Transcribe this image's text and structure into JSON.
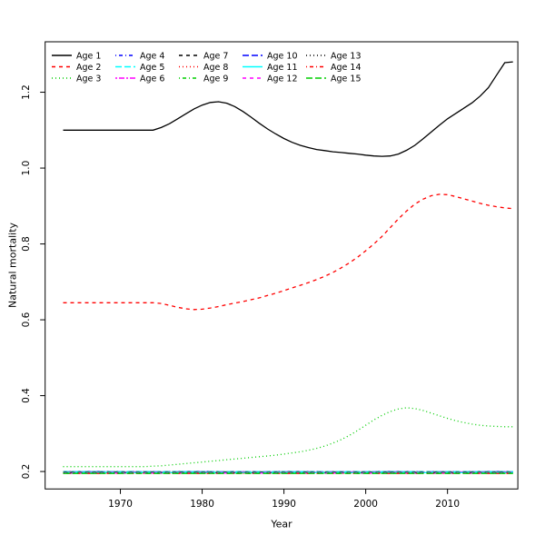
{
  "figure": {
    "background": "#ffffff"
  },
  "chart_data": {
    "type": "line",
    "title": "",
    "xlabel": "Year",
    "ylabel": "Natural mortality",
    "x_ticks": [
      1970,
      1980,
      1990,
      2000,
      2010
    ],
    "y_ticks": [
      0.2,
      0.4,
      0.6,
      0.8,
      1.0,
      1.2
    ],
    "xlim": [
      1960.8,
      2018.6
    ],
    "ylim": [
      0.154,
      1.333
    ],
    "grid": false,
    "legend_position": "top-horizontal",
    "legend_columns": 5,
    "legend_rows": 3,
    "x": [
      1963,
      1964,
      1965,
      1966,
      1967,
      1968,
      1969,
      1970,
      1971,
      1972,
      1973,
      1974,
      1975,
      1976,
      1977,
      1978,
      1979,
      1980,
      1981,
      1982,
      1983,
      1984,
      1985,
      1986,
      1987,
      1988,
      1989,
      1990,
      1991,
      1992,
      1993,
      1994,
      1995,
      1996,
      1997,
      1998,
      1999,
      2000,
      2001,
      2002,
      2003,
      2004,
      2005,
      2006,
      2007,
      2008,
      2009,
      2010,
      2011,
      2012,
      2013,
      2014,
      2015,
      2016,
      2017,
      2018
    ],
    "series": [
      {
        "name": "Age 1",
        "color": "#000000",
        "dash": "solid",
        "values": [
          1.1,
          1.1,
          1.1,
          1.1,
          1.1,
          1.1,
          1.1,
          1.1,
          1.1,
          1.1,
          1.1,
          1.1,
          1.107,
          1.117,
          1.13,
          1.143,
          1.156,
          1.166,
          1.173,
          1.175,
          1.171,
          1.162,
          1.149,
          1.134,
          1.118,
          1.103,
          1.09,
          1.078,
          1.068,
          1.06,
          1.054,
          1.049,
          1.046,
          1.043,
          1.041,
          1.039,
          1.037,
          1.034,
          1.032,
          1.031,
          1.032,
          1.037,
          1.047,
          1.06,
          1.077,
          1.095,
          1.113,
          1.13,
          1.144,
          1.158,
          1.172,
          1.19,
          1.212,
          1.245,
          1.278,
          1.28
        ]
      },
      {
        "name": "Age 2",
        "color": "#FF0000",
        "dash": "dashed",
        "values": [
          0.645,
          0.645,
          0.645,
          0.645,
          0.645,
          0.645,
          0.645,
          0.645,
          0.645,
          0.645,
          0.645,
          0.645,
          0.643,
          0.638,
          0.633,
          0.629,
          0.627,
          0.628,
          0.631,
          0.635,
          0.64,
          0.644,
          0.648,
          0.653,
          0.658,
          0.664,
          0.67,
          0.677,
          0.684,
          0.691,
          0.698,
          0.706,
          0.715,
          0.725,
          0.737,
          0.75,
          0.765,
          0.782,
          0.8,
          0.82,
          0.843,
          0.866,
          0.887,
          0.905,
          0.918,
          0.927,
          0.931,
          0.93,
          0.925,
          0.919,
          0.913,
          0.907,
          0.902,
          0.898,
          0.895,
          0.893
        ]
      },
      {
        "name": "Age 3",
        "color": "#00CD00",
        "dash": "dotted",
        "values": [
          0.213,
          0.213,
          0.213,
          0.213,
          0.213,
          0.213,
          0.213,
          0.213,
          0.213,
          0.213,
          0.213,
          0.214,
          0.215,
          0.217,
          0.219,
          0.221,
          0.223,
          0.225,
          0.227,
          0.229,
          0.231,
          0.233,
          0.235,
          0.237,
          0.239,
          0.241,
          0.243,
          0.246,
          0.249,
          0.252,
          0.256,
          0.261,
          0.267,
          0.275,
          0.284,
          0.295,
          0.308,
          0.322,
          0.336,
          0.348,
          0.358,
          0.365,
          0.368,
          0.366,
          0.361,
          0.354,
          0.347,
          0.34,
          0.334,
          0.329,
          0.325,
          0.322,
          0.32,
          0.319,
          0.318,
          0.318
        ]
      },
      {
        "name": "Age 4",
        "color": "#0000FF",
        "dash": "dotdash",
        "constant": 0.2
      },
      {
        "name": "Age 5",
        "color": "#00FFFF",
        "dash": "longdash",
        "constant": 0.2
      },
      {
        "name": "Age 6",
        "color": "#FF00FF",
        "dash": "twodash",
        "constant": 0.199
      },
      {
        "name": "Age 7",
        "color": "#000000",
        "dash": "dashed",
        "constant": 0.199
      },
      {
        "name": "Age 8",
        "color": "#FF0000",
        "dash": "dotted",
        "constant": 0.198
      },
      {
        "name": "Age 9",
        "color": "#00CD00",
        "dash": "dotdash",
        "constant": 0.198
      },
      {
        "name": "Age 10",
        "color": "#0000FF",
        "dash": "longdash",
        "constant": 0.197
      },
      {
        "name": "Age 11",
        "color": "#00FFFF",
        "dash": "solid",
        "constant": 0.197
      },
      {
        "name": "Age 12",
        "color": "#FF00FF",
        "dash": "dashed",
        "constant": 0.196
      },
      {
        "name": "Age 13",
        "color": "#000000",
        "dash": "dotted",
        "constant": 0.196
      },
      {
        "name": "Age 14",
        "color": "#FF0000",
        "dash": "dotdash",
        "constant": 0.195
      },
      {
        "name": "Age 15",
        "color": "#00CD00",
        "dash": "longdash",
        "constant": 0.195
      }
    ]
  }
}
